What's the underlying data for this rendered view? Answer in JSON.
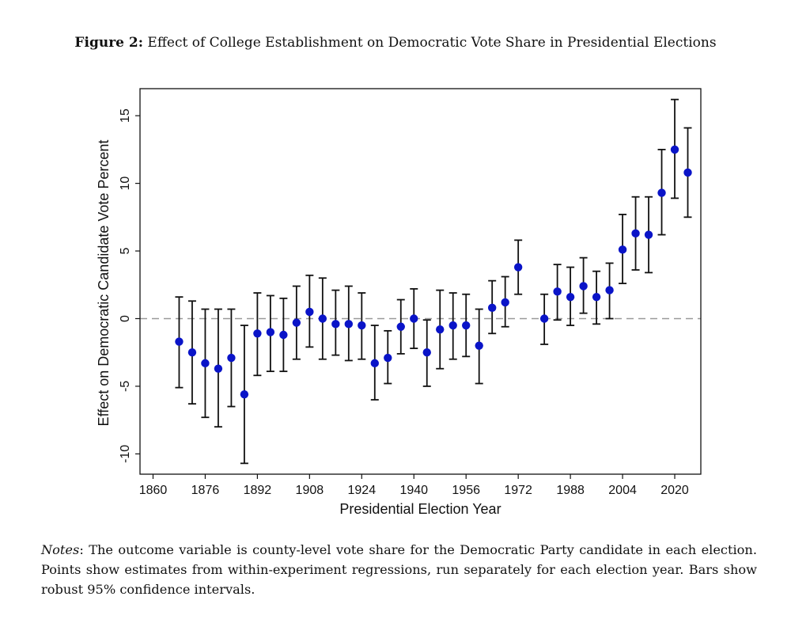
{
  "figure": {
    "label": "Figure 2:",
    "title": "Effect of College Establishment on Democratic Vote Share in Presidential Elections"
  },
  "notes": {
    "label": "Notes",
    "text": ": The outcome variable is county-level vote share for the Democratic Party candidate in each election. Points show estimates from within-experiment regressions, run separately for each election year. Bars show robust 95% confidence intervals."
  },
  "colors": {
    "point": "#0a14c8",
    "bar": "#111111",
    "reference_line": "#999999"
  },
  "chart_data": {
    "type": "scatter",
    "xlabel": "Presidential Election Year",
    "ylabel": "Effect on Democratic Candidate Vote Percent",
    "xlim": [
      1856,
      2028
    ],
    "ylim": [
      -11.5,
      17
    ],
    "xticks": [
      1860,
      1876,
      1892,
      1908,
      1924,
      1940,
      1956,
      1972,
      1988,
      2004,
      2020
    ],
    "yticks": [
      -10,
      -5,
      0,
      5,
      10,
      15
    ],
    "reference_line": 0,
    "grid": false,
    "legend": "none",
    "points": [
      {
        "x": 1868,
        "y": -1.7,
        "lo": -5.1,
        "hi": 1.6
      },
      {
        "x": 1872,
        "y": -2.5,
        "lo": -6.3,
        "hi": 1.3
      },
      {
        "x": 1876,
        "y": -3.3,
        "lo": -7.3,
        "hi": 0.7
      },
      {
        "x": 1880,
        "y": -3.7,
        "lo": -8.0,
        "hi": 0.7
      },
      {
        "x": 1884,
        "y": -2.9,
        "lo": -6.5,
        "hi": 0.7
      },
      {
        "x": 1888,
        "y": -5.6,
        "lo": -10.7,
        "hi": -0.5
      },
      {
        "x": 1892,
        "y": -1.1,
        "lo": -4.2,
        "hi": 1.9
      },
      {
        "x": 1896,
        "y": -1.0,
        "lo": -3.9,
        "hi": 1.7
      },
      {
        "x": 1900,
        "y": -1.2,
        "lo": -3.9,
        "hi": 1.5
      },
      {
        "x": 1904,
        "y": -0.3,
        "lo": -3.0,
        "hi": 2.4
      },
      {
        "x": 1908,
        "y": 0.5,
        "lo": -2.1,
        "hi": 3.2
      },
      {
        "x": 1912,
        "y": 0.0,
        "lo": -3.0,
        "hi": 3.0
      },
      {
        "x": 1916,
        "y": -0.4,
        "lo": -2.7,
        "hi": 2.1
      },
      {
        "x": 1920,
        "y": -0.4,
        "lo": -3.1,
        "hi": 2.4
      },
      {
        "x": 1924,
        "y": -0.5,
        "lo": -3.0,
        "hi": 1.9
      },
      {
        "x": 1928,
        "y": -3.3,
        "lo": -6.0,
        "hi": -0.5
      },
      {
        "x": 1932,
        "y": -2.9,
        "lo": -4.8,
        "hi": -0.9
      },
      {
        "x": 1936,
        "y": -0.6,
        "lo": -2.6,
        "hi": 1.4
      },
      {
        "x": 1940,
        "y": 0.0,
        "lo": -2.2,
        "hi": 2.2
      },
      {
        "x": 1944,
        "y": -2.5,
        "lo": -5.0,
        "hi": -0.1
      },
      {
        "x": 1948,
        "y": -0.8,
        "lo": -3.7,
        "hi": 2.1
      },
      {
        "x": 1952,
        "y": -0.5,
        "lo": -3.0,
        "hi": 1.9
      },
      {
        "x": 1956,
        "y": -0.5,
        "lo": -2.8,
        "hi": 1.8
      },
      {
        "x": 1960,
        "y": -2.0,
        "lo": -4.8,
        "hi": 0.7
      },
      {
        "x": 1964,
        "y": 0.8,
        "lo": -1.1,
        "hi": 2.8
      },
      {
        "x": 1968,
        "y": 1.2,
        "lo": -0.6,
        "hi": 3.1
      },
      {
        "x": 1972,
        "y": 3.8,
        "lo": 1.8,
        "hi": 5.8
      },
      {
        "x": 1980,
        "y": 0.0,
        "lo": -1.9,
        "hi": 1.8
      },
      {
        "x": 1984,
        "y": 2.0,
        "lo": -0.1,
        "hi": 4.0
      },
      {
        "x": 1988,
        "y": 1.6,
        "lo": -0.5,
        "hi": 3.8
      },
      {
        "x": 1992,
        "y": 2.4,
        "lo": 0.4,
        "hi": 4.5
      },
      {
        "x": 1996,
        "y": 1.6,
        "lo": -0.4,
        "hi": 3.5
      },
      {
        "x": 2000,
        "y": 2.1,
        "lo": 0.0,
        "hi": 4.1
      },
      {
        "x": 2004,
        "y": 5.1,
        "lo": 2.6,
        "hi": 7.7
      },
      {
        "x": 2008,
        "y": 6.3,
        "lo": 3.6,
        "hi": 9.0
      },
      {
        "x": 2012,
        "y": 6.2,
        "lo": 3.4,
        "hi": 9.0
      },
      {
        "x": 2016,
        "y": 9.3,
        "lo": 6.2,
        "hi": 12.5
      },
      {
        "x": 2020,
        "y": 12.5,
        "lo": 8.9,
        "hi": 16.2
      },
      {
        "x": 2024,
        "y": 10.8,
        "lo": 7.5,
        "hi": 14.1
      }
    ]
  }
}
